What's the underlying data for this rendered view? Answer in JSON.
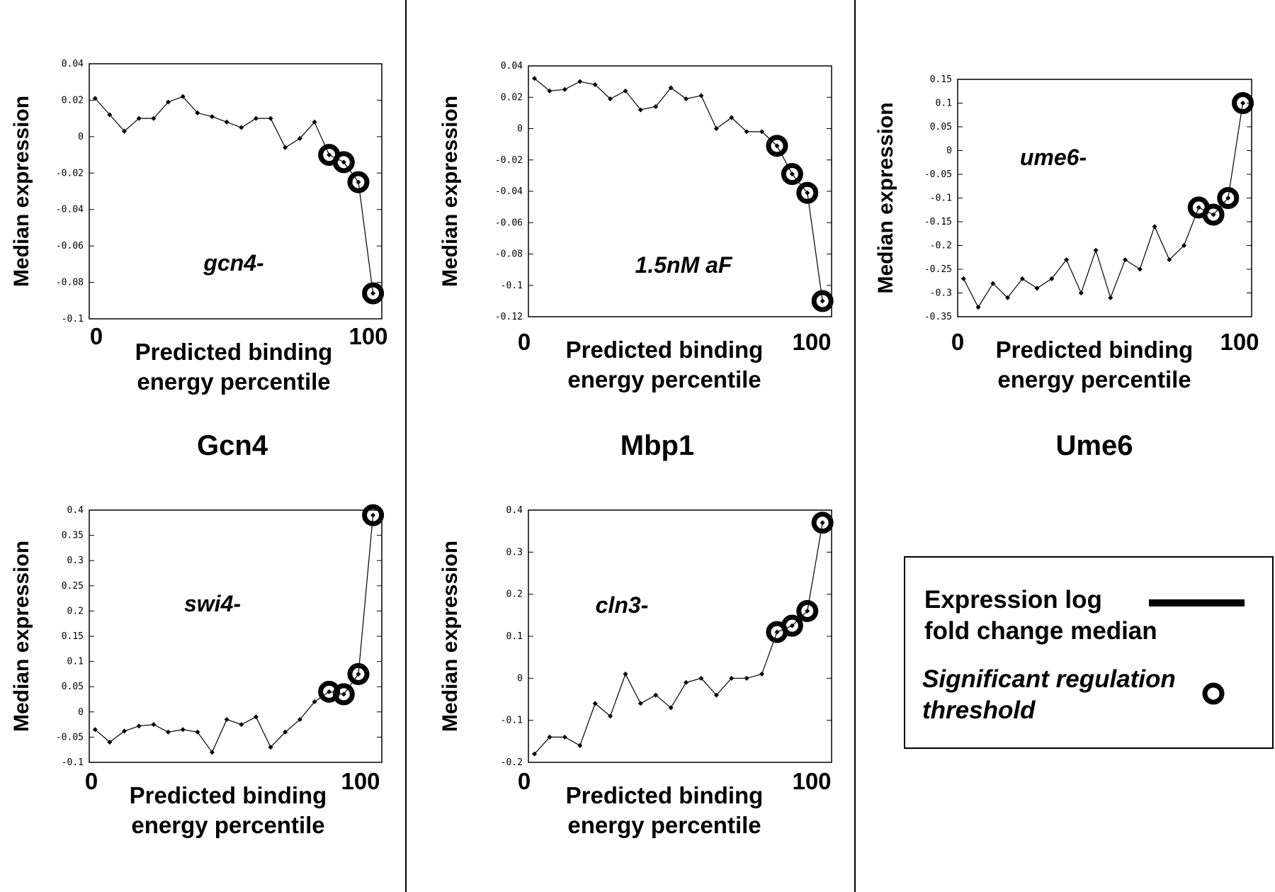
{
  "groups": [
    "Gcn4",
    "Mbp1",
    "Ume6"
  ],
  "x_axis_label": [
    "Predicted binding",
    "energy percentile"
  ],
  "y_axis_label": "Median expression",
  "x_end_labels": [
    "0",
    "100"
  ],
  "legend": {
    "line_label": [
      "Expression log",
      "fold change median"
    ],
    "marker_label": [
      "Significant regulation",
      "threshold"
    ]
  },
  "chart_data": [
    {
      "type": "line",
      "group": "Gcn4",
      "annotation": "gcn4-",
      "xlabel": "Predicted binding energy percentile",
      "ylabel": "Median expression",
      "xlim": [
        0,
        100
      ],
      "ylim": [
        -0.1,
        0.04
      ],
      "yticks": [
        "0.04",
        "0.02",
        "0",
        "-0.02",
        "-0.04",
        "-0.06",
        "-0.08",
        "-0.1"
      ],
      "x": [
        2,
        7,
        12,
        17,
        22,
        27,
        32,
        37,
        42,
        47,
        52,
        57,
        62,
        67,
        72,
        77,
        82,
        87,
        92,
        97
      ],
      "y": [
        0.021,
        0.012,
        0.003,
        0.01,
        0.01,
        0.019,
        0.022,
        0.013,
        0.011,
        0.008,
        0.005,
        0.01,
        0.01,
        -0.006,
        -0.001,
        0.008,
        -0.01,
        -0.014,
        -0.025,
        -0.086
      ],
      "significant_x": [
        82,
        87,
        92,
        97
      ]
    },
    {
      "type": "line",
      "group": "Mbp1",
      "annotation": "1.5nM aF",
      "xlabel": "Predicted binding energy percentile",
      "ylabel": "Median expression",
      "xlim": [
        0,
        100
      ],
      "ylim": [
        -0.12,
        0.04
      ],
      "yticks": [
        "0.04",
        "0.02",
        "0",
        "-0.02",
        "-0.04",
        "-0.06",
        "-0.08",
        "-0.1",
        "-0.12"
      ],
      "x": [
        2,
        7,
        12,
        17,
        22,
        27,
        32,
        37,
        42,
        47,
        52,
        57,
        62,
        67,
        72,
        77,
        82,
        87,
        92,
        97
      ],
      "y": [
        0.032,
        0.024,
        0.025,
        0.03,
        0.028,
        0.019,
        0.024,
        0.012,
        0.014,
        0.026,
        0.019,
        0.021,
        0.0,
        0.007,
        -0.002,
        -0.002,
        -0.011,
        -0.029,
        -0.041,
        -0.11
      ],
      "significant_x": [
        82,
        87,
        92,
        97
      ]
    },
    {
      "type": "line",
      "group": "Ume6",
      "annotation": "ume6-",
      "xlabel": "Predicted binding energy percentile",
      "ylabel": "Median expression",
      "xlim": [
        0,
        100
      ],
      "ylim": [
        -0.35,
        0.15
      ],
      "yticks": [
        "0.15",
        "0.1",
        "0.05",
        "0",
        "-0.05",
        "-0.1",
        "-0.15",
        "-0.2",
        "-0.25",
        "-0.3",
        "-0.35"
      ],
      "x": [
        2,
        7,
        12,
        17,
        22,
        27,
        32,
        37,
        42,
        47,
        52,
        57,
        62,
        67,
        72,
        77,
        82,
        87,
        92,
        97
      ],
      "y": [
        -0.27,
        -0.33,
        -0.28,
        -0.31,
        -0.27,
        -0.29,
        -0.27,
        -0.23,
        -0.3,
        -0.21,
        -0.31,
        -0.23,
        -0.25,
        -0.16,
        -0.23,
        -0.2,
        -0.12,
        -0.135,
        -0.1,
        0.1
      ],
      "significant_x": [
        82,
        87,
        92,
        97
      ]
    },
    {
      "type": "line",
      "group": "Gcn4",
      "annotation": "swi4-",
      "xlabel": "Predicted binding energy percentile",
      "ylabel": "Median expression",
      "xlim": [
        0,
        100
      ],
      "ylim": [
        -0.1,
        0.4
      ],
      "yticks": [
        "0.4",
        "0.35",
        "0.3",
        "0.25",
        "0.2",
        "0.15",
        "0.1",
        "0.05",
        "0",
        "-0.05",
        "-0.1"
      ],
      "x": [
        2,
        7,
        12,
        17,
        22,
        27,
        32,
        37,
        42,
        47,
        52,
        57,
        62,
        67,
        72,
        77,
        82,
        87,
        92,
        97
      ],
      "y": [
        -0.035,
        -0.06,
        -0.038,
        -0.028,
        -0.025,
        -0.04,
        -0.035,
        -0.04,
        -0.08,
        -0.015,
        -0.025,
        -0.01,
        -0.07,
        -0.04,
        -0.015,
        0.02,
        0.04,
        0.035,
        0.075,
        0.39
      ],
      "significant_x": [
        82,
        87,
        92,
        97
      ]
    },
    {
      "type": "line",
      "group": "Mbp1",
      "annotation": "cln3-",
      "xlabel": "Predicted binding energy percentile",
      "ylabel": "Median expression",
      "xlim": [
        0,
        100
      ],
      "ylim": [
        -0.2,
        0.4
      ],
      "yticks": [
        "0.4",
        "0.3",
        "0.2",
        "0.1",
        "0",
        "-0.1",
        "-0.2"
      ],
      "x": [
        2,
        7,
        12,
        17,
        22,
        27,
        32,
        37,
        42,
        47,
        52,
        57,
        62,
        67,
        72,
        77,
        82,
        87,
        92,
        97
      ],
      "y": [
        -0.18,
        -0.14,
        -0.14,
        -0.16,
        -0.06,
        -0.09,
        0.01,
        -0.06,
        -0.04,
        -0.07,
        -0.01,
        0.0,
        -0.04,
        0.0,
        0.0,
        0.01,
        0.11,
        0.125,
        0.16,
        0.37
      ],
      "significant_x": [
        82,
        87,
        92,
        97
      ]
    }
  ]
}
